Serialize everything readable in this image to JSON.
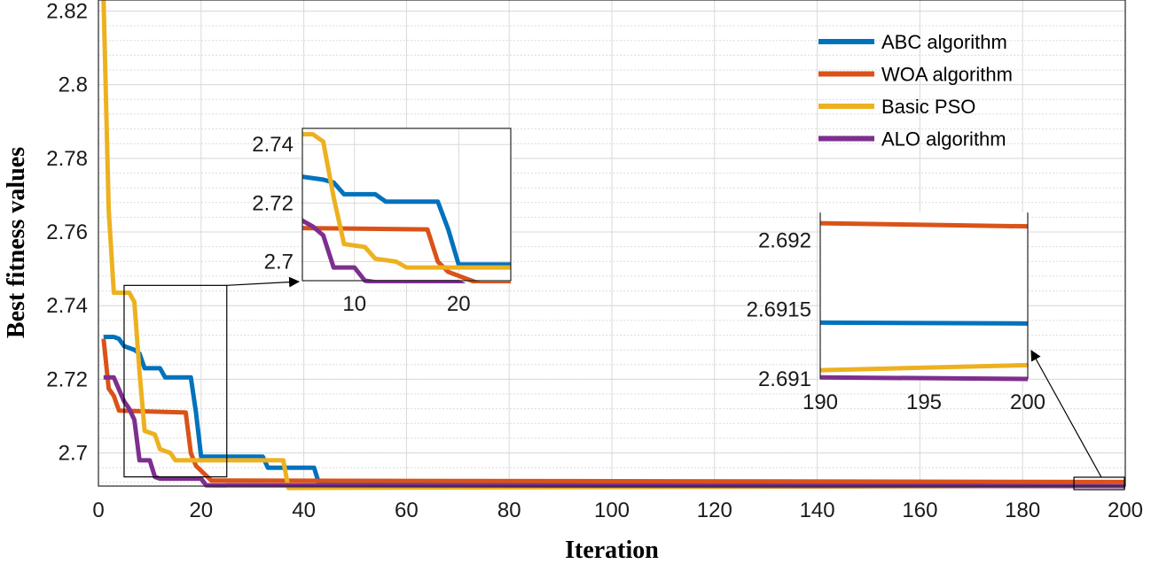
{
  "chart_data": {
    "type": "line",
    "xlabel": "Iteration",
    "ylabel": "Best fitness values",
    "xlim": [
      0,
      200
    ],
    "ylim": [
      2.691,
      2.823
    ],
    "xticks": [
      0,
      20,
      40,
      60,
      80,
      100,
      120,
      140,
      160,
      180,
      200
    ],
    "yticks": [
      2.7,
      2.72,
      2.74,
      2.76,
      2.78,
      2.8,
      2.82
    ],
    "ytick_labels": [
      "2.7",
      "2.72",
      "2.74",
      "2.76",
      "2.78",
      "2.8",
      "2.82"
    ],
    "grid": true,
    "legend_position": "top-right",
    "series": [
      {
        "name": "ABC algorithm",
        "color": "#0072BD",
        "points": [
          [
            1,
            2.7315
          ],
          [
            3,
            2.7315
          ],
          [
            4,
            2.731
          ],
          [
            5,
            2.729
          ],
          [
            7,
            2.728
          ],
          [
            8,
            2.727
          ],
          [
            9,
            2.723
          ],
          [
            12,
            2.723
          ],
          [
            13,
            2.7205
          ],
          [
            18,
            2.7205
          ],
          [
            19,
            2.711
          ],
          [
            20,
            2.699
          ],
          [
            32,
            2.699
          ],
          [
            33,
            2.696
          ],
          [
            42,
            2.696
          ],
          [
            43,
            2.6915
          ],
          [
            200,
            2.6914
          ]
        ]
      },
      {
        "name": "WOA algorithm",
        "color": "#D95319",
        "points": [
          [
            1,
            2.731
          ],
          [
            2,
            2.7175
          ],
          [
            3,
            2.7155
          ],
          [
            4,
            2.7115
          ],
          [
            17,
            2.711
          ],
          [
            18,
            2.7
          ],
          [
            19,
            2.6965
          ],
          [
            22,
            2.6925
          ],
          [
            200,
            2.6921
          ]
        ]
      },
      {
        "name": "Basic PSO",
        "color": "#EDB120",
        "points": [
          [
            1,
            2.823
          ],
          [
            2,
            2.766
          ],
          [
            3,
            2.7435
          ],
          [
            6,
            2.7435
          ],
          [
            7,
            2.741
          ],
          [
            8,
            2.722
          ],
          [
            9,
            2.706
          ],
          [
            11,
            2.705
          ],
          [
            12,
            2.701
          ],
          [
            14,
            2.7
          ],
          [
            15,
            2.698
          ],
          [
            36,
            2.698
          ],
          [
            37,
            2.6905
          ],
          [
            200,
            2.6911
          ]
        ]
      },
      {
        "name": "ALO algorithm",
        "color": "#7E2F8E",
        "points": [
          [
            1,
            2.7205
          ],
          [
            3,
            2.7205
          ],
          [
            5,
            2.714
          ],
          [
            6,
            2.712
          ],
          [
            7,
            2.709
          ],
          [
            8,
            2.698
          ],
          [
            10,
            2.698
          ],
          [
            11,
            2.6935
          ],
          [
            12,
            2.693
          ],
          [
            20,
            2.693
          ],
          [
            21,
            2.6912
          ],
          [
            200,
            2.691
          ]
        ]
      }
    ],
    "insets": [
      {
        "xlim": [
          5,
          25
        ],
        "ylim": [
          2.6935,
          2.7455
        ],
        "xticks": [
          10,
          20
        ],
        "xtick_labels": [
          "10",
          "20"
        ],
        "yticks": [
          2.7,
          2.72,
          2.74
        ],
        "ytick_labels": [
          "2.7",
          "2.72",
          "2.74"
        ]
      },
      {
        "xlim": [
          190,
          200
        ],
        "ylim": [
          2.691,
          2.6922
        ],
        "xticks": [
          190,
          195,
          200
        ],
        "xtick_labels": [
          "190",
          "195",
          "200"
        ],
        "yticks": [
          2.691,
          2.6915,
          2.692
        ],
        "ytick_labels": [
          "2.691",
          "2.6915",
          "2.692"
        ]
      }
    ]
  }
}
